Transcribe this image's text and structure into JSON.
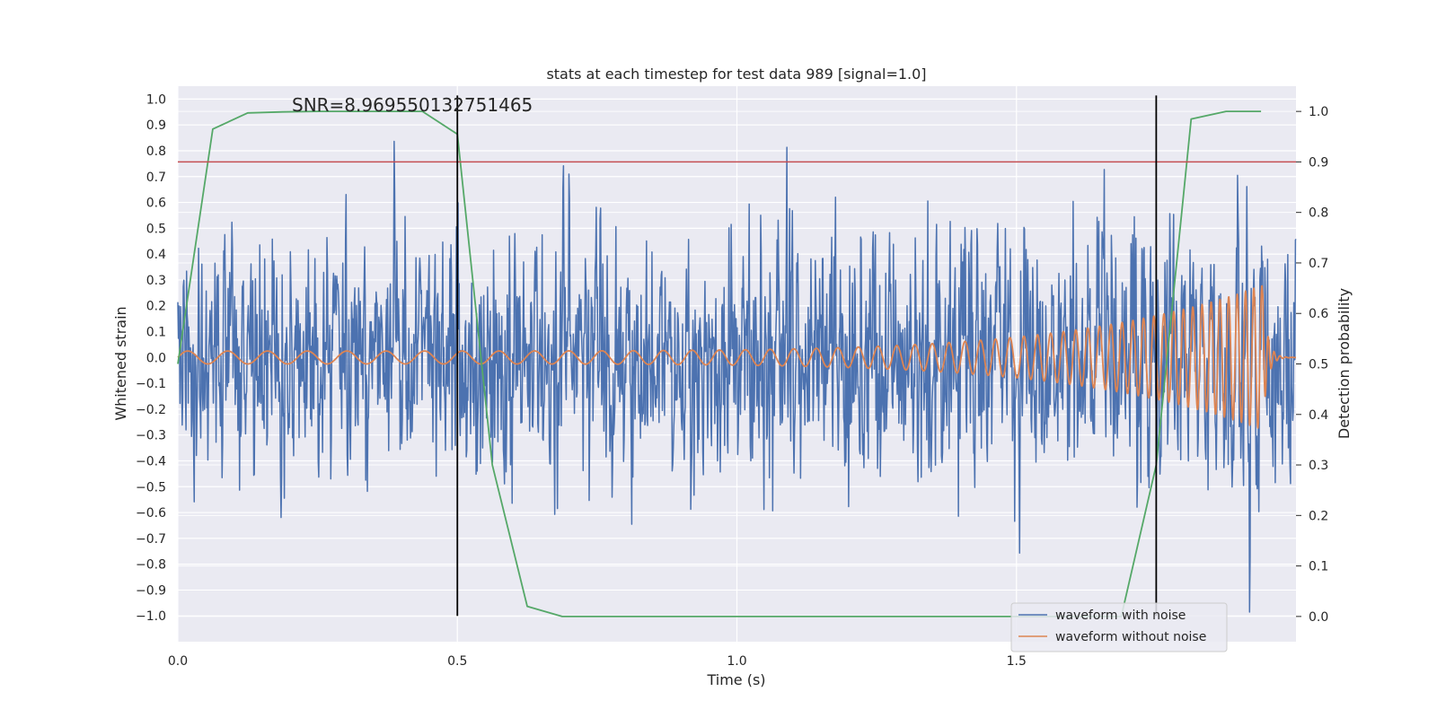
{
  "chart_data": {
    "type": "line",
    "title": "stats at each timestep for test data 989 [signal=1.0]",
    "xlabel": "Time (s)",
    "ylabel": "Whitened strain",
    "y2label": "Detection probability",
    "xlim": [
      0.0,
      2.0
    ],
    "ylim": [
      -1.1,
      1.05
    ],
    "y2lim": [
      -0.05,
      1.05
    ],
    "x_ticks": [
      0.0,
      0.5,
      1.0,
      1.5
    ],
    "x_tick_labels": [
      "0.0",
      "0.5",
      "1.0",
      "1.5"
    ],
    "y_ticks": [
      1.0,
      0.9,
      0.8,
      0.7,
      0.6,
      0.5,
      0.4,
      0.3,
      0.2,
      0.1,
      0.0,
      -0.1,
      -0.2,
      -0.3,
      -0.4,
      -0.5,
      -0.6,
      -0.7,
      -0.8,
      -0.9,
      -1.0
    ],
    "y_tick_labels": [
      "1.0",
      "0.9",
      "0.8",
      "0.7",
      "0.6",
      "0.5",
      "0.4",
      "0.3",
      "0.2",
      "0.1",
      "0.0",
      "−0.1",
      "−0.2",
      "−0.3",
      "−0.4",
      "−0.5",
      "−0.6",
      "−0.7",
      "−0.8",
      "−0.9",
      "−1.0"
    ],
    "y2_ticks": [
      1.0,
      0.9,
      0.8,
      0.7,
      0.6,
      0.5,
      0.4,
      0.3,
      0.2,
      0.1,
      0.0
    ],
    "y2_tick_labels": [
      "1.0",
      "0.9",
      "0.8",
      "0.7",
      "0.6",
      "0.5",
      "0.4",
      "0.3",
      "0.2",
      "0.1",
      "0.0"
    ],
    "grid": true,
    "annotation": "SNR=8.969550132751465",
    "annotation_at": {
      "x": 0.2,
      "y": 1.0
    },
    "threshold": {
      "value": 0.9,
      "axis": "y2",
      "color": "#c44e52"
    },
    "markers": [
      {
        "x": 0.5,
        "y_from": -1.0,
        "y_to": 1.0,
        "color": "#000000"
      },
      {
        "x": 1.75,
        "y_from": -1.0,
        "y_to": 1.0,
        "color": "#000000"
      }
    ],
    "series": [
      {
        "name": "waveform with noise",
        "axis": "y",
        "color": "#4c72b0",
        "kind": "noise",
        "seed": 989,
        "sigma": 0.22,
        "n_points": 2048,
        "x_range": [
          0.0,
          2.0
        ],
        "in_legend": true
      },
      {
        "name": "waveform without noise",
        "axis": "y",
        "color": "#dd8452",
        "kind": "chirp",
        "x_range": [
          0.0,
          2.0
        ],
        "merger_time": 1.94,
        "f_start": 14,
        "f_end": 70,
        "amp_start": 0.025,
        "amp_peak": 0.28,
        "in_legend": true
      },
      {
        "name": "detection probability",
        "axis": "y2",
        "color": "#55a868",
        "kind": "points",
        "x": [
          0.0,
          0.0625,
          0.125,
          0.1875,
          0.25,
          0.3125,
          0.375,
          0.4375,
          0.5,
          0.5625,
          0.625,
          0.6875,
          0.75,
          0.8125,
          0.875,
          0.9375,
          1.0,
          1.0625,
          1.125,
          1.1875,
          1.25,
          1.3125,
          1.375,
          1.4375,
          1.5,
          1.5625,
          1.625,
          1.6875,
          1.75,
          1.8125,
          1.875,
          1.9375
        ],
        "y": [
          0.5,
          0.965,
          0.997,
          0.999,
          1.0,
          1.0,
          1.0,
          1.0,
          0.955,
          0.3,
          0.02,
          0.0,
          0.0,
          0.0,
          0.0,
          0.0,
          0.0,
          0.0,
          0.0,
          0.0,
          0.0,
          0.0,
          0.0,
          0.0,
          0.0,
          0.0,
          0.0,
          0.0,
          0.3,
          0.985,
          1.0,
          1.0
        ],
        "in_legend": false
      }
    ],
    "legend": {
      "placement": "lower-right",
      "entries": [
        "waveform with noise",
        "waveform without noise"
      ]
    }
  }
}
